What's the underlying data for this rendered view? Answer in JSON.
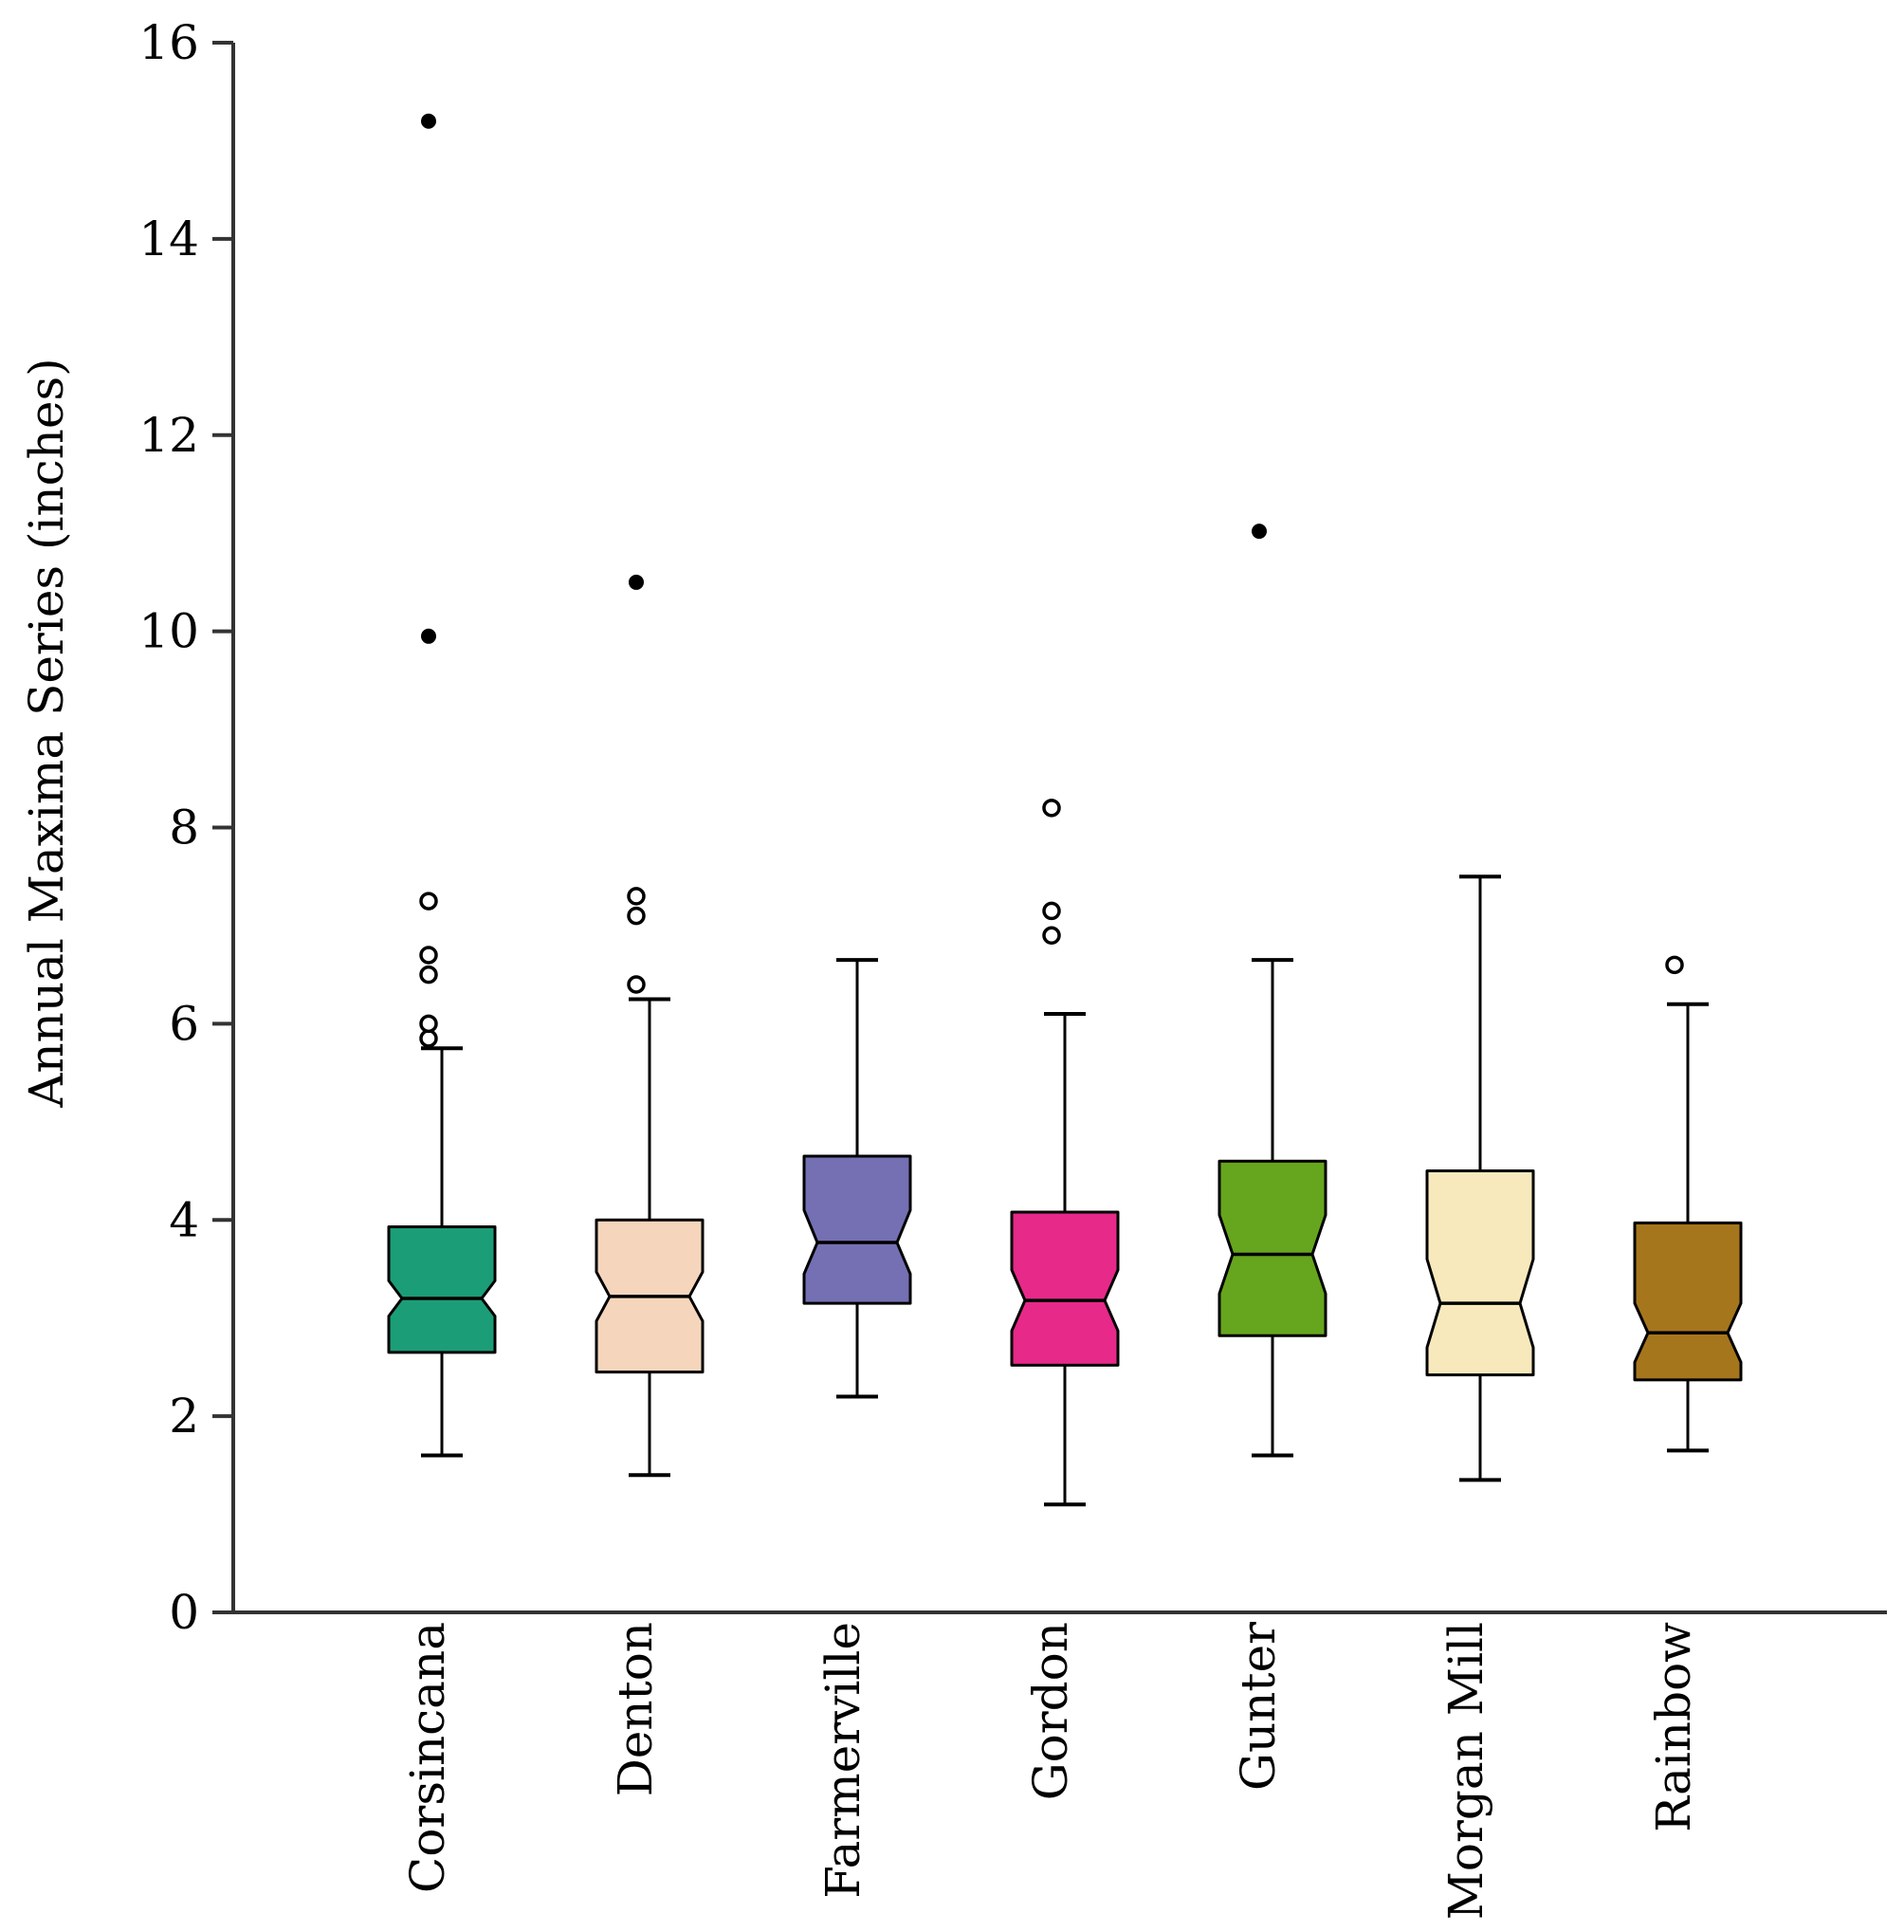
{
  "chart_data": {
    "type": "box",
    "notched": true,
    "title": "",
    "xlabel": "",
    "ylabel": "Annual Maxima Series (inches)",
    "ylim": [
      0,
      16
    ],
    "yticks": [
      "0",
      "2",
      "4",
      "6",
      "8",
      "10",
      "12",
      "14",
      "16"
    ],
    "categories": [
      "Corsincana",
      "Denton",
      "Farmerville",
      "Gordon",
      "Gunter",
      "Morgan Mill",
      "Rainbow"
    ],
    "boxes": [
      {
        "name": "Corsincana",
        "color": "#1b9e77",
        "whisker_low": 1.6,
        "q1": 2.65,
        "median": 3.2,
        "q3": 3.93,
        "notch_low": 3.02,
        "notch_high": 3.38,
        "whisker_high": 5.75,
        "outliers": [
          5.85,
          6.0,
          6.5,
          6.7,
          7.25
        ],
        "extremes": [
          9.95,
          15.2
        ]
      },
      {
        "name": "Denton",
        "color": "#f5d6bc",
        "whisker_low": 1.4,
        "q1": 2.45,
        "median": 3.22,
        "q3": 4.0,
        "notch_low": 2.97,
        "notch_high": 3.47,
        "whisker_high": 6.25,
        "outliers": [
          6.4,
          7.1,
          7.3
        ],
        "extremes": [
          10.5
        ]
      },
      {
        "name": "Farmerville",
        "color": "#7570b3",
        "whisker_low": 2.2,
        "q1": 3.15,
        "median": 3.77,
        "q3": 4.65,
        "notch_low": 3.45,
        "notch_high": 4.1,
        "whisker_high": 6.65,
        "outliers": [],
        "extremes": []
      },
      {
        "name": "Gordon",
        "color": "#e7298a",
        "whisker_low": 1.1,
        "q1": 2.52,
        "median": 3.18,
        "q3": 4.08,
        "notch_low": 2.87,
        "notch_high": 3.49,
        "whisker_high": 6.1,
        "outliers": [
          6.9,
          7.15,
          8.2
        ],
        "extremes": []
      },
      {
        "name": "Gunter",
        "color": "#66a61e",
        "whisker_low": 1.6,
        "q1": 2.82,
        "median": 3.65,
        "q3": 4.6,
        "notch_low": 3.25,
        "notch_high": 4.05,
        "whisker_high": 6.65,
        "outliers": [],
        "extremes": [
          11.02
        ]
      },
      {
        "name": "Morgan Mill",
        "color": "#f8e9bd",
        "whisker_low": 1.35,
        "q1": 2.42,
        "median": 3.15,
        "q3": 4.5,
        "notch_low": 2.7,
        "notch_high": 3.6,
        "whisker_high": 7.5,
        "outliers": [],
        "extremes": []
      },
      {
        "name": "Rainbow",
        "color": "#a6761d",
        "whisker_low": 1.65,
        "q1": 2.37,
        "median": 2.85,
        "q3": 3.97,
        "notch_low": 2.55,
        "notch_high": 3.15,
        "whisker_high": 6.2,
        "outliers": [
          6.6
        ],
        "extremes": []
      }
    ]
  }
}
